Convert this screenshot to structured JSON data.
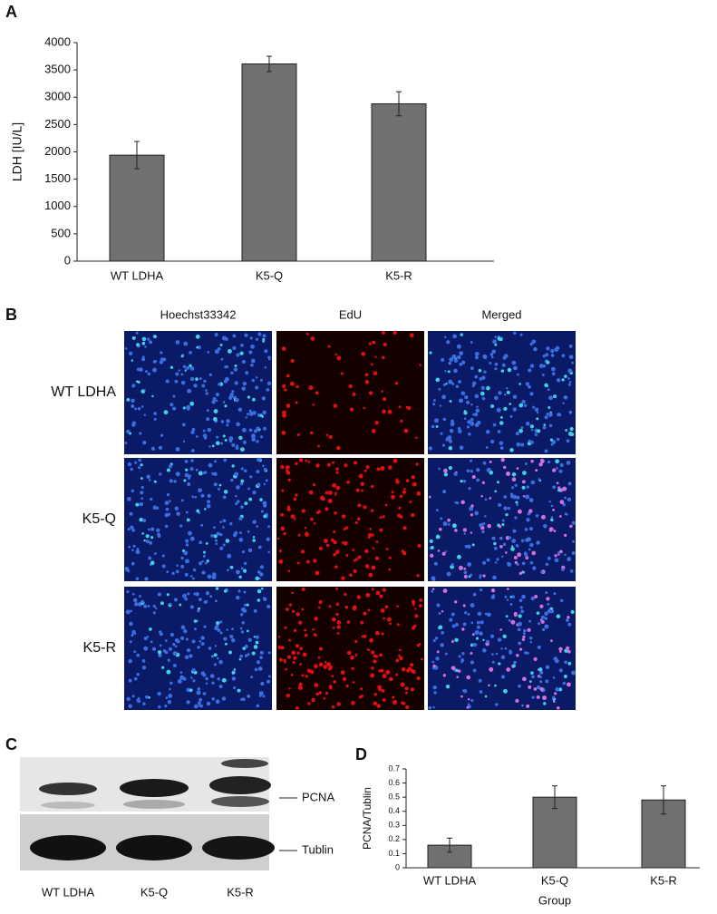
{
  "chart_data": [
    {
      "type": "bar",
      "label": "A",
      "ylabel": "LDH [IU/L]",
      "categories": [
        "WT LDHA",
        "K5-Q",
        "K5-R"
      ],
      "values": [
        1940,
        3610,
        2880
      ],
      "errors": [
        250,
        140,
        220
      ],
      "color": "#707070",
      "ylim": [
        0,
        4000
      ],
      "yticks": [
        0,
        500,
        1000,
        1500,
        2000,
        2500,
        3000,
        3500,
        4000
      ]
    },
    {
      "type": "bar",
      "label": "D",
      "ylabel": "PCNA/Tublin",
      "xlabel": "Group",
      "categories": [
        "WT LDHA",
        "K5-Q",
        "K5-R"
      ],
      "values": [
        0.16,
        0.5,
        0.48
      ],
      "errors": [
        0.05,
        0.08,
        0.1
      ],
      "color": "#707070",
      "ylim": [
        0,
        0.7
      ],
      "yticks": [
        0,
        0.1,
        0.2,
        0.3,
        0.4,
        0.5,
        0.6,
        0.7
      ]
    }
  ],
  "panel_b": {
    "label": "B",
    "columns": [
      "Hoechst33342",
      "EdU",
      "Merged"
    ],
    "rows": [
      "WT LDHA",
      "K5-Q",
      "K5-R"
    ]
  },
  "panel_c": {
    "label": "C",
    "bands": [
      "PCNA",
      "Tublin"
    ],
    "lanes": [
      "WT LDHA",
      "K5-Q",
      "K5-R"
    ]
  }
}
